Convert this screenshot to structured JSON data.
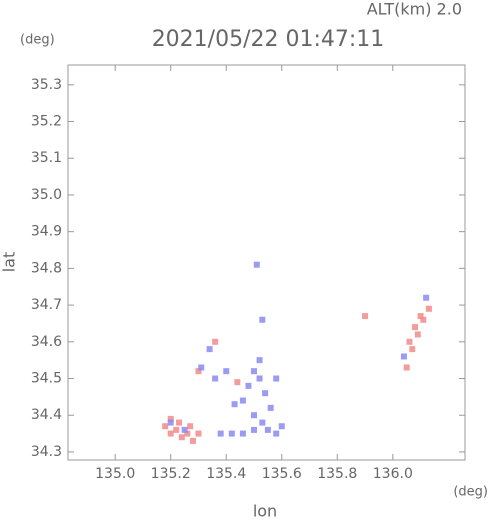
{
  "chart_data": {
    "type": "scatter",
    "title": "2021/05/22 01:47:11",
    "subtitle": "ALT(km) 2.0",
    "x_label": "lon",
    "y_label": "lat",
    "x_unit": "(deg)",
    "y_unit": "(deg)",
    "xlim": [
      134.83,
      136.26
    ],
    "ylim": [
      34.278,
      35.354
    ],
    "xticks": [
      {
        "value": 135,
        "label": "135.0"
      },
      135.2,
      135.4,
      135.6,
      135.8,
      {
        "value": 136,
        "label": "136.0"
      }
    ],
    "yticks": [
      34.3,
      34.4,
      34.5,
      34.6,
      34.7,
      34.8,
      34.9,
      {
        "value": 35,
        "label": "35.0"
      },
      35.1,
      35.2,
      35.3
    ],
    "series": [
      {
        "color": "#f28a8a",
        "x": [
          135.18,
          135.2,
          135.22,
          135.24,
          135.26,
          135.28,
          135.3,
          135.2,
          135.23,
          135.27,
          136.05,
          136.07,
          136.09,
          136.11,
          136.13,
          136.06,
          136.08,
          136.1,
          135.36,
          135.9,
          135.3,
          135.44
        ],
        "values": [
          34.37,
          34.35,
          34.36,
          34.34,
          34.35,
          34.33,
          34.35,
          34.39,
          34.38,
          34.37,
          34.53,
          34.58,
          34.62,
          34.66,
          34.69,
          34.6,
          34.64,
          34.67,
          34.6,
          34.67,
          34.52,
          34.49
        ]
      },
      {
        "color": "#8a8af2",
        "x": [
          135.48,
          135.5,
          135.52,
          135.54,
          135.56,
          135.46,
          135.5,
          135.53,
          135.43,
          135.38,
          135.42,
          135.46,
          135.5,
          135.55,
          135.58,
          135.6,
          135.36,
          135.4,
          135.25,
          135.2,
          135.52,
          135.51,
          135.53,
          136.12,
          136.04,
          135.31,
          135.34,
          135.58
        ],
        "values": [
          34.48,
          34.52,
          34.5,
          34.46,
          34.42,
          34.44,
          34.4,
          34.38,
          34.43,
          34.35,
          34.35,
          34.35,
          34.36,
          34.36,
          34.35,
          34.37,
          34.5,
          34.52,
          34.36,
          34.38,
          34.55,
          34.81,
          34.66,
          34.72,
          34.56,
          34.53,
          34.58,
          34.5
        ]
      }
    ]
  }
}
